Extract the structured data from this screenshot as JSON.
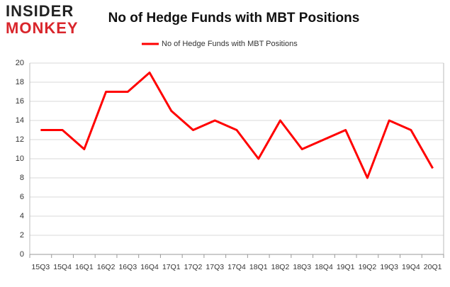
{
  "logo": {
    "line1": "INSIDER",
    "line2": "MONKEY"
  },
  "chart_data": {
    "type": "line",
    "title": "No of Hedge Funds with MBT Positions",
    "categories": [
      "15Q3",
      "15Q4",
      "16Q1",
      "16Q2",
      "16Q3",
      "16Q4",
      "17Q1",
      "17Q2",
      "17Q3",
      "17Q4",
      "18Q1",
      "18Q2",
      "18Q3",
      "18Q4",
      "19Q1",
      "19Q2",
      "19Q3",
      "19Q4",
      "20Q1"
    ],
    "series": [
      {
        "name": "No of Hedge Funds with MBT Positions",
        "color": "#ff0000",
        "values": [
          13,
          13,
          11,
          17,
          17,
          19,
          15,
          13,
          14,
          13,
          10,
          14,
          11,
          12,
          13,
          8,
          14,
          13,
          9
        ]
      }
    ],
    "ylim": [
      0,
      20
    ],
    "yticks": [
      0,
      2,
      4,
      6,
      8,
      10,
      12,
      14,
      16,
      18,
      20
    ],
    "grid": true,
    "legend": "top"
  }
}
